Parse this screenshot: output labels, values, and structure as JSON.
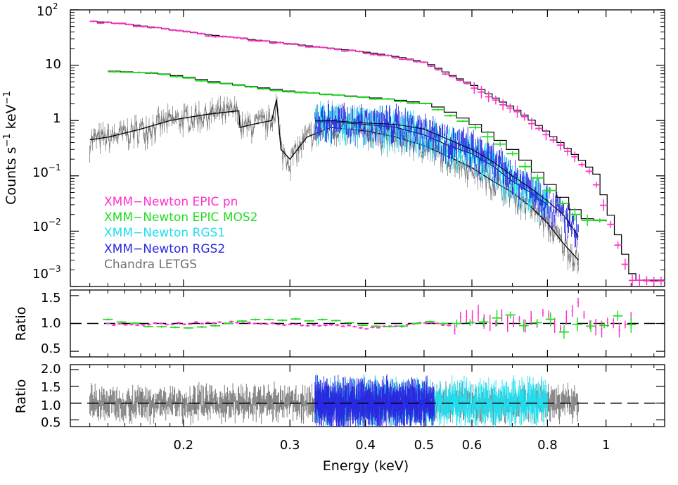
{
  "chart_data": [
    {
      "type": "line",
      "panel": "spectrum",
      "xlabel": "",
      "ylabel": "Counts s",
      "ylabel_sup1": "−1",
      "ylabel_mid": " keV",
      "ylabel_sup2": "−1",
      "x_scale": "log",
      "y_scale": "log",
      "xlim": [
        0.13,
        1.25
      ],
      "ylim": [
        0.001,
        100
      ],
      "yticks": [
        {
          "base": "10",
          "exp": "2",
          "value": 100
        },
        {
          "base": "10",
          "exp": "",
          "value": 10
        },
        {
          "base": "1",
          "exp": "",
          "value": 1
        },
        {
          "base": "10",
          "exp": "−1",
          "value": 0.1
        },
        {
          "base": "10",
          "exp": "−2",
          "value": 0.01
        },
        {
          "base": "10",
          "exp": "−3",
          "value": 0.001
        }
      ],
      "legend_placement": "lower-left",
      "series": [
        {
          "name": "XMM−Newton EPIC pn",
          "color": "#ff33cc",
          "x": [
            0.14,
            0.16,
            0.18,
            0.2,
            0.22,
            0.25,
            0.28,
            0.3,
            0.35,
            0.4,
            0.45,
            0.5,
            0.55,
            0.6,
            0.65,
            0.7,
            0.75,
            0.8,
            0.85,
            0.9,
            0.95,
            1.0,
            1.1,
            1.25
          ],
          "y": [
            62,
            55,
            47,
            40,
            35,
            30,
            26,
            24,
            20,
            17,
            14,
            11,
            6.5,
            4.2,
            2.5,
            1.6,
            0.95,
            0.55,
            0.32,
            0.19,
            0.11,
            0.022,
            0.0013,
            0.0013
          ]
        },
        {
          "name": "XMM−Newton EPIC MOS2",
          "color": "#22dd22",
          "x": [
            0.15,
            0.18,
            0.2,
            0.22,
            0.25,
            0.28,
            0.3,
            0.35,
            0.4,
            0.45,
            0.5,
            0.55,
            0.6,
            0.65,
            0.7,
            0.75,
            0.8,
            0.85,
            0.9,
            1.0
          ],
          "y": [
            7.8,
            7.0,
            6.0,
            5.0,
            4.2,
            3.6,
            3.3,
            2.9,
            2.6,
            2.3,
            2.0,
            1.3,
            0.8,
            0.45,
            0.25,
            0.12,
            0.06,
            0.03,
            0.017,
            0.015
          ]
        },
        {
          "name": "XMM−Newton RGS1",
          "color": "#22ddee",
          "x": [
            0.33,
            0.35,
            0.4,
            0.45,
            0.5,
            0.55,
            0.6,
            0.65,
            0.7,
            0.75,
            0.8
          ],
          "y": [
            0.95,
            0.95,
            0.85,
            0.75,
            0.55,
            0.35,
            0.25,
            0.15,
            0.08,
            0.05,
            0.03
          ]
        },
        {
          "name": "XMM−Newton RGS2",
          "color": "#2a2ae0",
          "x": [
            0.33,
            0.35,
            0.4,
            0.45,
            0.5,
            0.55,
            0.6,
            0.65,
            0.7,
            0.75,
            0.8,
            0.85,
            0.9
          ],
          "y": [
            1.0,
            1.0,
            0.9,
            0.85,
            0.7,
            0.45,
            0.3,
            0.18,
            0.1,
            0.06,
            0.035,
            0.02,
            0.008
          ]
        },
        {
          "name": "Chandra LETGS",
          "color": "#707070",
          "x": [
            0.14,
            0.15,
            0.17,
            0.19,
            0.2,
            0.22,
            0.247,
            0.248,
            0.26,
            0.28,
            0.285,
            0.29,
            0.3,
            0.32,
            0.35,
            0.4,
            0.45,
            0.5,
            0.55,
            0.6,
            0.65,
            0.7,
            0.75,
            0.8,
            0.85,
            0.9
          ],
          "y": [
            0.45,
            0.5,
            0.7,
            1.0,
            1.1,
            1.3,
            1.5,
            0.75,
            0.85,
            1.0,
            2.4,
            0.3,
            0.2,
            0.5,
            0.75,
            0.65,
            0.5,
            0.35,
            0.22,
            0.14,
            0.08,
            0.05,
            0.028,
            0.014,
            0.006,
            0.003
          ]
        }
      ]
    },
    {
      "type": "scatter",
      "panel": "ratio-epic",
      "ylabel": "Ratio",
      "x_scale": "log",
      "xlim": [
        0.13,
        1.25
      ],
      "ylim": [
        0.4,
        1.6
      ],
      "yticks": [
        "1.5",
        "1.0",
        "0.5"
      ],
      "reference_line": 1.0,
      "series": [
        {
          "color": "#ff33cc",
          "x": [
            0.15,
            0.2,
            0.25,
            0.3,
            0.35,
            0.4,
            0.45,
            0.5,
            0.55,
            0.6,
            0.65,
            0.7,
            0.75,
            0.8,
            0.85,
            0.9,
            0.95,
            1.1
          ],
          "y": [
            0.98,
            1.0,
            1.02,
            0.98,
            0.97,
            0.92,
            0.95,
            1.02,
            0.98,
            1.08,
            1.05,
            1.1,
            1.05,
            1.2,
            0.95,
            1.3,
            0.8,
            1.1
          ]
        },
        {
          "color": "#22dd22",
          "x": [
            0.15,
            0.18,
            0.22,
            0.25,
            0.3,
            0.35,
            0.4,
            0.45,
            0.5,
            0.55,
            0.6,
            0.65,
            0.7,
            0.75,
            0.8,
            0.85,
            0.9,
            0.95
          ],
          "y": [
            1.08,
            0.92,
            0.95,
            1.05,
            1.08,
            1.05,
            0.95,
            0.93,
            1.05,
            0.98,
            1.15,
            1.1,
            1.2,
            0.95,
            1.05,
            0.85,
            1.1,
            1.05
          ]
        }
      ]
    },
    {
      "type": "scatter",
      "panel": "ratio-grating",
      "ylabel": "Ratio",
      "xlabel": "Energy (keV)",
      "x_scale": "log",
      "xlim": [
        0.13,
        1.25
      ],
      "ylim": [
        0.3,
        2.15
      ],
      "yticks": [
        "2.0",
        "1.5",
        "1.0",
        "0.5"
      ],
      "xticks": [
        {
          "label": "0.2",
          "value": 0.2
        },
        {
          "label": "0.3",
          "value": 0.3
        },
        {
          "label": "0.4",
          "value": 0.4
        },
        {
          "label": "0.5",
          "value": 0.5
        },
        {
          "label": "0.6",
          "value": 0.6
        },
        {
          "label": "0.8",
          "value": 0.8
        },
        {
          "label": "1",
          "value": 1.0
        }
      ],
      "reference_line": 1.0,
      "series": [
        {
          "color": "#707070",
          "x_range": [
            0.14,
            0.9
          ],
          "scatter": 0.45
        },
        {
          "color": "#22ddee",
          "x_range": [
            0.33,
            0.8
          ],
          "scatter": 0.6
        },
        {
          "color": "#2a2ae0",
          "x_range": [
            0.33,
            0.52
          ],
          "scatter": 0.7
        }
      ]
    }
  ]
}
